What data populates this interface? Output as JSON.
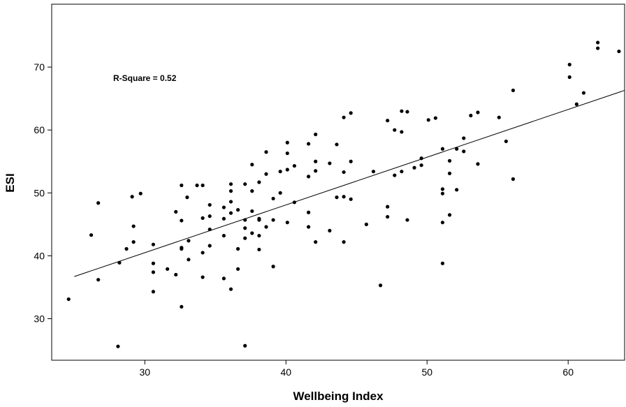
{
  "chart_data": {
    "type": "scatter",
    "title": "",
    "xlabel": "Wellbeing Index",
    "ylabel": "ESI",
    "annotation": "R-Square = 0.52",
    "xlim": [
      23.4,
      64.0
    ],
    "ylim": [
      23.4,
      80.0
    ],
    "xticks": [
      30,
      40,
      50,
      60
    ],
    "yticks": [
      30,
      40,
      50,
      60,
      70
    ],
    "xtick_labels": [
      "30",
      "40",
      "50",
      "60"
    ],
    "ytick_labels": [
      "30",
      "40",
      "50",
      "60",
      "70"
    ],
    "grid": false,
    "fit_line": {
      "x": [
        25.0,
        64.0
      ],
      "y": [
        36.7,
        66.3
      ]
    },
    "points": [
      [
        24.6,
        33.1
      ],
      [
        26.2,
        43.3
      ],
      [
        26.7,
        48.4
      ],
      [
        26.7,
        36.2
      ],
      [
        28.1,
        25.6
      ],
      [
        28.2,
        38.9
      ],
      [
        28.7,
        41.1
      ],
      [
        29.1,
        49.4
      ],
      [
        29.2,
        44.7
      ],
      [
        29.2,
        42.2
      ],
      [
        29.7,
        49.9
      ],
      [
        30.6,
        41.8
      ],
      [
        30.6,
        38.8
      ],
      [
        30.6,
        37.4
      ],
      [
        30.6,
        34.3
      ],
      [
        31.6,
        37.9
      ],
      [
        32.2,
        47.0
      ],
      [
        32.2,
        37.0
      ],
      [
        32.6,
        51.2
      ],
      [
        32.6,
        45.6
      ],
      [
        32.6,
        41.3
      ],
      [
        32.6,
        41.1
      ],
      [
        32.6,
        31.9
      ],
      [
        33.0,
        49.3
      ],
      [
        33.1,
        42.4
      ],
      [
        33.1,
        39.4
      ],
      [
        33.7,
        51.2
      ],
      [
        34.1,
        51.2
      ],
      [
        34.1,
        46.0
      ],
      [
        34.1,
        40.5
      ],
      [
        34.1,
        36.6
      ],
      [
        34.6,
        48.1
      ],
      [
        34.6,
        46.3
      ],
      [
        34.6,
        44.2
      ],
      [
        34.6,
        41.6
      ],
      [
        35.6,
        47.7
      ],
      [
        35.6,
        45.9
      ],
      [
        35.6,
        43.2
      ],
      [
        35.6,
        36.4
      ],
      [
        36.1,
        51.4
      ],
      [
        36.1,
        50.3
      ],
      [
        36.1,
        48.6
      ],
      [
        36.1,
        46.8
      ],
      [
        36.1,
        34.7
      ],
      [
        36.6,
        47.3
      ],
      [
        36.6,
        41.1
      ],
      [
        36.6,
        37.9
      ],
      [
        37.1,
        51.4
      ],
      [
        37.1,
        45.7
      ],
      [
        37.1,
        44.4
      ],
      [
        37.1,
        42.8
      ],
      [
        37.1,
        25.7
      ],
      [
        37.6,
        54.5
      ],
      [
        37.6,
        50.3
      ],
      [
        37.6,
        47.1
      ],
      [
        37.6,
        43.6
      ],
      [
        38.1,
        51.7
      ],
      [
        38.1,
        45.9
      ],
      [
        38.1,
        45.7
      ],
      [
        38.1,
        43.2
      ],
      [
        38.1,
        41.0
      ],
      [
        38.6,
        56.5
      ],
      [
        38.6,
        53.0
      ],
      [
        38.6,
        44.6
      ],
      [
        39.1,
        49.1
      ],
      [
        39.1,
        45.7
      ],
      [
        39.1,
        38.3
      ],
      [
        39.6,
        53.4
      ],
      [
        39.6,
        50.0
      ],
      [
        40.1,
        58.0
      ],
      [
        40.1,
        56.3
      ],
      [
        40.1,
        53.7
      ],
      [
        40.1,
        45.3
      ],
      [
        40.6,
        54.3
      ],
      [
        40.6,
        48.5
      ],
      [
        41.6,
        57.8
      ],
      [
        41.6,
        52.6
      ],
      [
        41.6,
        46.9
      ],
      [
        41.6,
        44.6
      ],
      [
        42.1,
        59.3
      ],
      [
        42.1,
        55.0
      ],
      [
        42.1,
        53.5
      ],
      [
        42.1,
        42.2
      ],
      [
        43.1,
        54.7
      ],
      [
        43.1,
        44.0
      ],
      [
        43.6,
        57.7
      ],
      [
        43.6,
        49.3
      ],
      [
        44.1,
        62.0
      ],
      [
        44.1,
        53.3
      ],
      [
        44.1,
        49.4
      ],
      [
        44.1,
        42.2
      ],
      [
        44.6,
        62.7
      ],
      [
        44.6,
        55.0
      ],
      [
        44.6,
        49.0
      ],
      [
        45.7,
        45.0
      ],
      [
        46.2,
        53.4
      ],
      [
        46.7,
        35.3
      ],
      [
        47.2,
        61.5
      ],
      [
        47.2,
        47.8
      ],
      [
        47.2,
        46.2
      ],
      [
        47.7,
        60.0
      ],
      [
        47.7,
        52.8
      ],
      [
        48.2,
        63.0
      ],
      [
        48.2,
        59.7
      ],
      [
        48.2,
        53.4
      ],
      [
        48.6,
        62.9
      ],
      [
        48.6,
        45.7
      ],
      [
        49.1,
        54.0
      ],
      [
        49.6,
        55.5
      ],
      [
        49.6,
        54.4
      ],
      [
        50.1,
        61.6
      ],
      [
        50.6,
        61.9
      ],
      [
        51.1,
        57.0
      ],
      [
        51.1,
        50.6
      ],
      [
        51.1,
        49.9
      ],
      [
        51.1,
        45.3
      ],
      [
        51.1,
        38.8
      ],
      [
        51.6,
        55.1
      ],
      [
        51.6,
        53.1
      ],
      [
        51.6,
        46.5
      ],
      [
        52.1,
        57.0
      ],
      [
        52.1,
        50.5
      ],
      [
        52.6,
        58.7
      ],
      [
        52.6,
        56.6
      ],
      [
        53.1,
        62.3
      ],
      [
        53.6,
        62.8
      ],
      [
        53.6,
        54.6
      ],
      [
        55.1,
        62.0
      ],
      [
        55.6,
        58.2
      ],
      [
        56.1,
        66.3
      ],
      [
        56.1,
        52.2
      ],
      [
        60.1,
        70.4
      ],
      [
        60.1,
        68.4
      ],
      [
        60.6,
        64.1
      ],
      [
        61.1,
        65.9
      ],
      [
        62.1,
        73.9
      ],
      [
        62.1,
        73.0
      ],
      [
        63.6,
        72.5
      ]
    ]
  }
}
